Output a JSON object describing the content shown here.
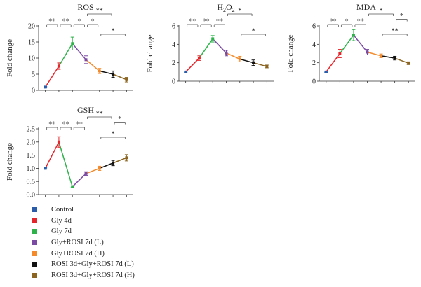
{
  "colors": {
    "Control": "#2a5caa",
    "Gly 4d": "#e4262c",
    "Gly 7d": "#2db34a",
    "Gly+ROSI 7d (L)": "#7b4aa3",
    "Gly+ROSI 7d (H)": "#f58a2a",
    "ROSI 3d+Gly+ROSI 7d (L)": "#111111",
    "ROSI 3d+Gly+ROSI 7d (H)": "#8a6420"
  },
  "legend": [
    "Control",
    "Gly 4d",
    "Gly 7d",
    "Gly+ROSI 7d (L)",
    "Gly+ROSI 7d (H)",
    "ROSI 3d+Gly+ROSI 7d (L)",
    "ROSI 3d+Gly+ROSI 7d (H)"
  ],
  "chart_data": [
    {
      "type": "line",
      "title": "ROS",
      "ylabel": "Fold change",
      "ylim": [
        0,
        20
      ],
      "yticks": [
        0,
        5,
        10,
        15,
        20
      ],
      "groups": [
        "Control",
        "Gly 4d",
        "Gly 7d",
        "Gly+ROSI 7d (L)",
        "Gly+ROSI 7d (H)",
        "ROSI 3d+Gly+ROSI 7d (L)",
        "ROSI 3d+Gly+ROSI 7d (H)"
      ],
      "values": [
        1.0,
        7.5,
        14.5,
        9.5,
        6.0,
        5.0,
        3.3
      ],
      "errors": [
        0.2,
        1.0,
        2.0,
        1.2,
        0.8,
        1.0,
        0.7
      ],
      "significance": [
        {
          "from": 0,
          "to": 1,
          "label": "**",
          "row": 0
        },
        {
          "from": 1,
          "to": 2,
          "label": "**",
          "row": 0
        },
        {
          "from": 2,
          "to": 3,
          "label": "*",
          "row": 0
        },
        {
          "from": 3,
          "to": 4,
          "label": "*",
          "row": 0
        },
        {
          "from": 3,
          "to": 5,
          "label": "**",
          "row": 1
        },
        {
          "from": 4,
          "to": 6,
          "label": "*",
          "row": -1
        }
      ]
    },
    {
      "type": "line",
      "title": "H2O2",
      "ylabel": "Fold change",
      "ylim": [
        0,
        6
      ],
      "yticks": [
        0,
        2,
        4,
        6
      ],
      "groups": [
        "Control",
        "Gly 4d",
        "Gly 7d",
        "Gly+ROSI 7d (L)",
        "Gly+ROSI 7d (H)",
        "ROSI 3d+Gly+ROSI 7d (L)",
        "ROSI 3d+Gly+ROSI 7d (H)"
      ],
      "values": [
        1.0,
        2.5,
        4.6,
        3.05,
        2.4,
        2.0,
        1.6
      ],
      "errors": [
        0.05,
        0.25,
        0.35,
        0.3,
        0.3,
        0.3,
        0.15
      ],
      "significance": [
        {
          "from": 0,
          "to": 1,
          "label": "**",
          "row": 0
        },
        {
          "from": 1,
          "to": 2,
          "label": "**",
          "row": 0
        },
        {
          "from": 2,
          "to": 3,
          "label": "**",
          "row": 0
        },
        {
          "from": 3,
          "to": 5,
          "label": "*",
          "row": 1
        },
        {
          "from": 4,
          "to": 6,
          "label": "*",
          "row": -1
        }
      ]
    },
    {
      "type": "line",
      "title": "MDA",
      "ylabel": "Fold change",
      "ylim": [
        0,
        6
      ],
      "yticks": [
        0,
        2,
        4,
        6
      ],
      "groups": [
        "Control",
        "Gly 4d",
        "Gly 7d",
        "Gly+ROSI 7d (L)",
        "Gly+ROSI 7d (H)",
        "ROSI 3d+Gly+ROSI 7d (L)",
        "ROSI 3d+Gly+ROSI 7d (H)"
      ],
      "values": [
        1.0,
        3.0,
        5.0,
        3.15,
        2.75,
        2.5,
        1.95
      ],
      "errors": [
        0.05,
        0.45,
        0.6,
        0.3,
        0.2,
        0.2,
        0.15
      ],
      "significance": [
        {
          "from": 0,
          "to": 1,
          "label": "**",
          "row": 0
        },
        {
          "from": 1,
          "to": 2,
          "label": "*",
          "row": 0
        },
        {
          "from": 2,
          "to": 3,
          "label": "**",
          "row": 0
        },
        {
          "from": 3,
          "to": 5,
          "label": "*",
          "row": 1
        },
        {
          "from": 5,
          "to": 6,
          "label": "*",
          "row": 0.5
        },
        {
          "from": 4,
          "to": 6,
          "label": "**",
          "row": -1
        }
      ]
    },
    {
      "type": "line",
      "title": "GSH",
      "ylabel": "Fold change",
      "ylim": [
        0,
        2.5
      ],
      "yticks": [
        0,
        0.5,
        1.0,
        1.5,
        2.0,
        2.5
      ],
      "groups": [
        "Control",
        "Gly 4d",
        "Gly 7d",
        "Gly+ROSI 7d (L)",
        "Gly+ROSI 7d (H)",
        "ROSI 3d+Gly+ROSI 7d (L)",
        "ROSI 3d+Gly+ROSI 7d (H)"
      ],
      "values": [
        1.0,
        2.0,
        0.3,
        0.8,
        1.0,
        1.2,
        1.4
      ],
      "errors": [
        0.02,
        0.2,
        0.03,
        0.07,
        0.08,
        0.1,
        0.12
      ],
      "significance": [
        {
          "from": 0,
          "to": 1,
          "label": "**",
          "row": 0
        },
        {
          "from": 1,
          "to": 2,
          "label": "**",
          "row": 0
        },
        {
          "from": 2,
          "to": 3,
          "label": "**",
          "row": 0
        },
        {
          "from": 3,
          "to": 5,
          "label": "**",
          "row": 1
        },
        {
          "from": 5,
          "to": 6,
          "label": "*",
          "row": 0.5
        },
        {
          "from": 4,
          "to": 6,
          "label": "*",
          "row": -1
        }
      ]
    }
  ]
}
